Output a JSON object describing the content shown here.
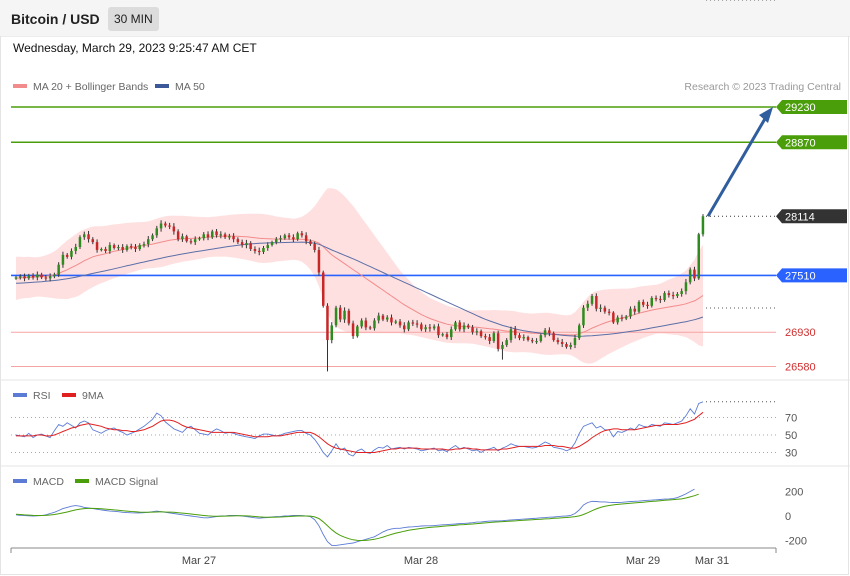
{
  "header": {
    "title": "Bitcoin / USD",
    "timeframe": "30 MIN",
    "datetime": "Wednesday, March 29, 2023 9:25:47 AM CET"
  },
  "legend": {
    "ma20_label": "MA 20 + Bollinger Bands",
    "ma50_label": "MA 50",
    "ma20_color": "#f28b8b",
    "ma50_color": "#3b5998"
  },
  "copyright": "Research © 2023 Trading Central",
  "chart_data": {
    "type": "candlestick",
    "price_axis": {
      "min": 26500,
      "max": 29400
    },
    "levels": [
      {
        "value": 29230,
        "label": "29230",
        "kind": "target",
        "color": "#4a9e0a"
      },
      {
        "value": 28870,
        "label": "28870",
        "kind": "target",
        "color": "#4a9e0a"
      },
      {
        "value": 28114,
        "label": "28114",
        "kind": "last",
        "color": "#333333"
      },
      {
        "value": 27510,
        "label": "27510",
        "kind": "pivot",
        "color": "#2962ff"
      },
      {
        "value": 26930,
        "label": "26930",
        "kind": "support",
        "color": "#d32f2f"
      },
      {
        "value": 26580,
        "label": "26580",
        "kind": "support",
        "color": "#d32f2f"
      }
    ],
    "x_ticks": [
      "Mar 27",
      "Mar 28",
      "Mar 29",
      "Mar 31"
    ],
    "close": [
      27490,
      27500,
      27480,
      27510,
      27490,
      27520,
      27490,
      27480,
      27500,
      27520,
      27620,
      27720,
      27700,
      27760,
      27800,
      27900,
      27930,
      27880,
      27850,
      27770,
      27780,
      27760,
      27820,
      27790,
      27800,
      27770,
      27810,
      27800,
      27780,
      27820,
      27830,
      27880,
      27920,
      27990,
      28040,
      28020,
      28010,
      27960,
      27880,
      27910,
      27860,
      27850,
      27880,
      27890,
      27930,
      27900,
      27960,
      27920,
      27930,
      27900,
      27910,
      27880,
      27850,
      27820,
      27840,
      27780,
      27760,
      27750,
      27790,
      27820,
      27850,
      27880,
      27890,
      27920,
      27900,
      27880,
      27940,
      27920,
      27860,
      27830,
      27770,
      27540,
      27200,
      26850,
      27000,
      27180,
      27060,
      27150,
      27020,
      26890,
      26990,
      27050,
      26980,
      26970,
      27050,
      27100,
      27060,
      27080,
      27030,
      27040,
      27000,
      26960,
      27030,
      27020,
      27010,
      26960,
      26980,
      26970,
      26990,
      26900,
      26910,
      26880,
      26960,
      27030,
      26960,
      27000,
      26980,
      26930,
      26940,
      26890,
      26880,
      26840,
      26920,
      26760,
      26800,
      26850,
      26960,
      26900,
      26870,
      26880,
      26850,
      26840,
      26840,
      26900,
      26950,
      26920,
      26850,
      26830,
      26810,
      26780,
      26800,
      26870,
      27000,
      27180,
      27220,
      27300,
      27170,
      27180,
      27140,
      27130,
      27030,
      27080,
      27070,
      27090,
      27170,
      27140,
      27240,
      27210,
      27200,
      27280,
      27270,
      27260,
      27330,
      27310,
      27300,
      27320,
      27350,
      27440,
      27570,
      27480,
      27930,
      28114
    ],
    "ma20": [
      27480,
      27485,
      27488,
      27490,
      27492,
      27495,
      27498,
      27502,
      27508,
      27515,
      27530,
      27550,
      27568,
      27590,
      27610,
      27635,
      27660,
      27680,
      27700,
      27712,
      27722,
      27732,
      27745,
      27756,
      27765,
      27775,
      27786,
      27795,
      27803,
      27810,
      27816,
      27822,
      27830,
      27840,
      27850,
      27860,
      27870,
      27876,
      27880,
      27884,
      27886,
      27888,
      27890,
      27893,
      27897,
      27900,
      27904,
      27907,
      27910,
      27912,
      27913,
      27912,
      27910,
      27907,
      27905,
      27900,
      27895,
      27890,
      27887,
      27885,
      27883,
      27882,
      27881,
      27881,
      27880,
      27879,
      27880,
      27880,
      27876,
      27870,
      27858,
      27840,
      27805,
      27760,
      27720,
      27690,
      27660,
      27630,
      27600,
      27570,
      27540,
      27510,
      27480,
      27450,
      27420,
      27390,
      27360,
      27330,
      27300,
      27270,
      27240,
      27210,
      27185,
      27160,
      27135,
      27110,
      27090,
      27070,
      27055,
      27040,
      27025,
      27012,
      27004,
      26998,
      26992,
      26988,
      26985,
      26982,
      26980,
      26975,
      26970,
      26965,
      26962,
      26955,
      26948,
      26942,
      26938,
      26934,
      26930,
      26927,
      26924,
      26920,
      26918,
      26916,
      26914,
      26912,
      26910,
      26908,
      26906,
      26904,
      26902,
      26905,
      26915,
      26930,
      26950,
      26972,
      26990,
      27008,
      27025,
      27040,
      27052,
      27064,
      27075,
      27086,
      27098,
      27110,
      27124,
      27136,
      27146,
      27156,
      27164,
      27172,
      27180,
      27188,
      27195,
      27202,
      27210,
      27220,
      27236,
      27250,
      27275,
      27305
    ],
    "ma50": [
      27430,
      27432,
      27434,
      27437,
      27440,
      27443,
      27446,
      27450,
      27454,
      27458,
      27463,
      27469,
      27476,
      27484,
      27492,
      27501,
      27511,
      27521,
      27531,
      27540,
      27549,
      27558,
      27568,
      27578,
      27588,
      27598,
      27608,
      27618,
      27628,
      27638,
      27647,
      27657,
      27667,
      27677,
      27686,
      27695,
      27704,
      27713,
      27721,
      27729,
      27737,
      27744,
      27751,
      27758,
      27765,
      27772,
      27779,
      27786,
      27793,
      27800,
      27806,
      27812,
      27818,
      27823,
      27828,
      27832,
      27835,
      27838,
      27840,
      27842,
      27843,
      27844,
      27845,
      27846,
      27847,
      27848,
      27849,
      27850,
      27848,
      27845,
      27838,
      27828,
      27810,
      27790,
      27770,
      27752,
      27734,
      27716,
      27698,
      27680,
      27660,
      27640,
      27620,
      27600,
      27580,
      27560,
      27540,
      27520,
      27500,
      27480,
      27460,
      27440,
      27420,
      27400,
      27380,
      27360,
      27340,
      27320,
      27300,
      27280,
      27260,
      27240,
      27220,
      27200,
      27180,
      27160,
      27140,
      27120,
      27100,
      27080,
      27062,
      27046,
      27030,
      27015,
      27000,
      26988,
      26976,
      26964,
      26954,
      26946,
      26938,
      26932,
      26926,
      26920,
      26916,
      26912,
      26908,
      26904,
      26900,
      26896,
      26892,
      26890,
      26889,
      26890,
      26892,
      26895,
      26898,
      26902,
      26906,
      26910,
      26915,
      26920,
      26926,
      26932,
      26938,
      26944,
      26950,
      26958,
      26966,
      26974,
      26982,
      26990,
      26998,
      27006,
      27014,
      27022,
      27030,
      27038,
      27048,
      27058,
      27070,
      27085
    ],
    "bb_width": [
      220,
      215,
      210,
      210,
      205,
      200,
      205,
      215,
      225,
      240,
      260,
      280,
      300,
      310,
      320,
      325,
      320,
      315,
      310,
      300,
      290,
      285,
      280,
      275,
      270,
      265,
      260,
      255,
      250,
      245,
      240,
      240,
      245,
      250,
      255,
      255,
      250,
      245,
      240,
      235,
      230,
      225,
      220,
      215,
      210,
      205,
      205,
      205,
      210,
      210,
      215,
      220,
      225,
      230,
      235,
      240,
      245,
      250,
      250,
      245,
      240,
      230,
      225,
      220,
      215,
      210,
      215,
      230,
      260,
      300,
      360,
      440,
      540,
      640,
      680,
      700,
      700,
      690,
      670,
      650,
      620,
      590,
      560,
      530,
      500,
      470,
      440,
      410,
      380,
      350,
      320,
      300,
      280,
      260,
      245,
      230,
      220,
      210,
      205,
      200,
      195,
      190,
      185,
      180,
      175,
      170,
      170,
      170,
      175,
      180,
      185,
      190,
      195,
      200,
      205,
      210,
      210,
      210,
      205,
      200,
      200,
      200,
      205,
      210,
      215,
      215,
      210,
      205,
      200,
      200,
      205,
      230,
      270,
      310,
      340,
      360,
      360,
      350,
      340,
      330,
      320,
      310,
      300,
      290,
      280,
      275,
      270,
      265,
      260,
      255,
      250,
      255,
      265,
      280,
      290,
      300,
      320,
      340,
      380,
      420,
      480,
      520
    ],
    "rsi": {
      "name": "RSI",
      "ma_name": "9MA",
      "ticks": [
        70,
        50,
        30
      ],
      "range": [
        20,
        85
      ],
      "values": [
        50,
        49,
        48,
        52,
        47,
        50,
        51,
        49,
        47,
        55,
        62,
        60,
        64,
        61,
        58,
        64,
        66,
        64,
        56,
        54,
        52,
        55,
        57,
        58,
        55,
        53,
        50,
        52,
        54,
        57,
        60,
        64,
        68,
        75,
        72,
        65,
        61,
        57,
        55,
        53,
        58,
        60,
        56,
        52,
        51,
        50,
        54,
        57,
        55,
        52,
        53,
        52,
        50,
        49,
        48,
        47,
        46,
        49,
        51,
        51,
        50,
        49,
        50,
        52,
        53,
        54,
        55,
        55,
        52,
        50,
        45,
        38,
        30,
        25,
        32,
        40,
        33,
        35,
        28,
        26,
        32,
        34,
        30,
        29,
        33,
        36,
        35,
        38,
        34,
        35,
        36,
        34,
        36,
        35,
        34,
        32,
        33,
        34,
        35,
        32,
        33,
        31,
        35,
        38,
        34,
        36,
        34,
        32,
        33,
        30,
        33,
        34,
        36,
        32,
        35,
        37,
        40,
        38,
        37,
        37,
        36,
        35,
        36,
        39,
        42,
        40,
        36,
        35,
        34,
        32,
        34,
        41,
        52,
        60,
        62,
        64,
        58,
        60,
        56,
        56,
        48,
        54,
        53,
        55,
        58,
        56,
        62,
        60,
        59,
        62,
        61,
        60,
        64,
        63,
        62,
        64,
        66,
        72,
        80,
        74,
        86,
        88
      ],
      "ma": [
        49,
        49,
        49,
        49,
        49,
        50,
        50,
        49,
        49,
        50,
        52,
        54,
        56,
        58,
        59,
        61,
        62,
        63,
        62,
        61,
        60,
        58,
        57,
        56,
        56,
        55,
        55,
        54,
        54,
        55,
        56,
        58,
        60,
        63,
        66,
        67,
        67,
        66,
        64,
        61,
        59,
        58,
        57,
        56,
        55,
        54,
        53,
        53,
        53,
        53,
        53,
        53,
        52,
        51,
        50,
        49,
        48,
        48,
        48,
        48,
        49,
        49,
        49,
        50,
        51,
        52,
        53,
        53,
        53,
        53,
        51,
        48,
        44,
        40,
        37,
        35,
        34,
        33,
        32,
        31,
        30,
        30,
        30,
        30,
        30,
        31,
        32,
        33,
        34,
        34,
        35,
        35,
        35,
        35,
        35,
        34,
        34,
        34,
        34,
        34,
        34,
        33,
        33,
        34,
        34,
        35,
        35,
        34,
        34,
        33,
        33,
        33,
        33,
        33,
        34,
        34,
        35,
        36,
        37,
        37,
        37,
        37,
        37,
        37,
        38,
        38,
        38,
        37,
        37,
        36,
        35,
        35,
        37,
        40,
        43,
        47,
        50,
        53,
        55,
        56,
        57,
        57,
        56,
        56,
        56,
        56,
        57,
        58,
        59,
        60,
        61,
        61,
        62,
        62,
        62,
        62,
        63,
        64,
        66,
        68,
        72,
        76
      ]
    },
    "macd": {
      "name": "MACD",
      "signal_name": "MACD Signal",
      "ticks": [
        200,
        0,
        -200
      ],
      "range": [
        -260,
        260
      ],
      "values": [
        10,
        5,
        3,
        2,
        0,
        2,
        3,
        10,
        20,
        30,
        45,
        60,
        70,
        80,
        85,
        80,
        70,
        65,
        60,
        55,
        50,
        45,
        40,
        38,
        35,
        30,
        28,
        26,
        25,
        25,
        27,
        30,
        35,
        40,
        35,
        30,
        25,
        20,
        15,
        10,
        5,
        0,
        -5,
        -10,
        -15,
        -15,
        -10,
        -5,
        0,
        0,
        5,
        5,
        3,
        0,
        -5,
        -10,
        -15,
        -18,
        -15,
        -12,
        -8,
        -5,
        -3,
        0,
        2,
        5,
        4,
        3,
        0,
        -5,
        -30,
        -80,
        -150,
        -210,
        -240,
        -240,
        -235,
        -230,
        -225,
        -220,
        -210,
        -200,
        -190,
        -180,
        -170,
        -150,
        -130,
        -115,
        -105,
        -100,
        -100,
        -95,
        -90,
        -88,
        -85,
        -82,
        -80,
        -80,
        -78,
        -75,
        -72,
        -70,
        -68,
        -65,
        -62,
        -60,
        -58,
        -55,
        -50,
        -48,
        -45,
        -42,
        -40,
        -40,
        -38,
        -35,
        -32,
        -30,
        -28,
        -25,
        -23,
        -20,
        -18,
        -15,
        -13,
        -10,
        -8,
        -5,
        -2,
        0,
        5,
        20,
        50,
        90,
        110,
        120,
        118,
        115,
        115,
        112,
        110,
        110,
        112,
        115,
        118,
        120,
        122,
        125,
        128,
        130,
        132,
        135,
        138,
        140,
        142,
        150,
        165,
        180,
        200,
        220
      ]
    },
    "macd_signal": [
      15,
      12,
      9,
      7,
      5,
      4,
      4,
      5,
      8,
      12,
      18,
      25,
      33,
      42,
      50,
      56,
      60,
      62,
      62,
      61,
      59,
      56,
      53,
      50,
      47,
      43,
      40,
      37,
      34,
      32,
      31,
      31,
      32,
      33,
      34,
      33,
      32,
      30,
      27,
      24,
      20,
      16,
      12,
      8,
      4,
      1,
      -1,
      -2,
      -2,
      -1,
      0,
      1,
      2,
      2,
      1,
      -1,
      -4,
      -7,
      -9,
      -10,
      -10,
      -9,
      -8,
      -6,
      -4,
      -2,
      0,
      0,
      0,
      -1,
      -7,
      -21,
      -47,
      -80,
      -112,
      -138,
      -158,
      -173,
      -185,
      -194,
      -199,
      -200,
      -199,
      -195,
      -190,
      -182,
      -172,
      -161,
      -150,
      -140,
      -132,
      -124,
      -117,
      -111,
      -106,
      -101,
      -97,
      -93,
      -90,
      -87,
      -84,
      -81,
      -78,
      -75,
      -72,
      -70,
      -67,
      -65,
      -62,
      -59,
      -56,
      -53,
      -50,
      -48,
      -46,
      -44,
      -42,
      -40,
      -37,
      -35,
      -33,
      -31,
      -28,
      -26,
      -24,
      -22,
      -19,
      -17,
      -15,
      -12,
      -9,
      -5,
      1,
      12,
      27,
      43,
      58,
      70,
      79,
      86,
      91,
      95,
      98,
      101,
      104,
      107,
      110,
      113,
      116,
      119,
      122,
      125,
      128,
      131,
      134,
      137,
      140,
      147,
      156,
      166,
      178
    ]
  }
}
